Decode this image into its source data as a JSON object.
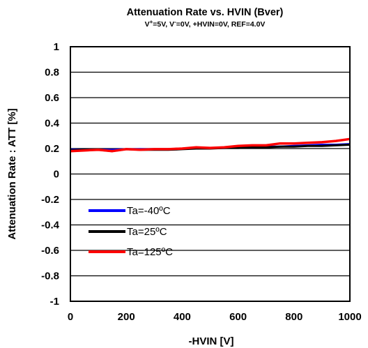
{
  "chart_data": {
    "type": "line",
    "title": "Attenuation Rate vs. HVIN (Bver)",
    "subtitle": {
      "vplus": "V",
      "vplus_sup": "+",
      "vplus_rest": "=5V, V",
      "vminus_sup": "-",
      "rest": "=0V, +HVIN=0V, REF=4.0V"
    },
    "xlabel": "-HVIN [V]",
    "ylabel": "Attenuation Rate : ATT [%]",
    "xlim": [
      0,
      1000
    ],
    "ylim": [
      -1,
      1
    ],
    "x_ticks": [
      0,
      200,
      400,
      600,
      800,
      1000
    ],
    "x_tick_labels": [
      "0",
      "200",
      "400",
      "600",
      "800",
      "1000"
    ],
    "y_ticks": [
      1,
      0.8,
      0.6,
      0.4,
      0.2,
      0,
      -0.2,
      -0.4,
      -0.6,
      -0.8,
      -1
    ],
    "y_tick_labels": [
      "1",
      "0.8",
      "0.6",
      "0.4",
      "0.2",
      "0",
      "-0.2",
      "-0.4",
      "-0.6",
      "-0.8",
      "-1"
    ],
    "grid": "horizontal",
    "legend_position": "lower-left",
    "series": [
      {
        "name": "Ta=-40ºC",
        "color": "#0000ff",
        "x": [
          0,
          50,
          100,
          150,
          200,
          250,
          300,
          350,
          400,
          450,
          500,
          550,
          600,
          650,
          700,
          750,
          800,
          850,
          900,
          950,
          1000
        ],
        "y": [
          0.19,
          0.19,
          0.19,
          0.19,
          0.195,
          0.195,
          0.195,
          0.195,
          0.2,
          0.2,
          0.205,
          0.205,
          0.21,
          0.21,
          0.215,
          0.215,
          0.22,
          0.225,
          0.23,
          0.23,
          0.235
        ]
      },
      {
        "name": "Ta=25ºC",
        "color": "#000000",
        "x": [
          0,
          50,
          100,
          150,
          200,
          250,
          300,
          350,
          400,
          450,
          500,
          550,
          600,
          650,
          700,
          750,
          800,
          850,
          900,
          950,
          1000
        ],
        "y": [
          0.185,
          0.19,
          0.19,
          0.18,
          0.195,
          0.19,
          0.19,
          0.19,
          0.195,
          0.2,
          0.2,
          0.205,
          0.205,
          0.21,
          0.21,
          0.215,
          0.215,
          0.22,
          0.22,
          0.225,
          0.23
        ]
      },
      {
        "name": "Ta=125ºC",
        "color": "#ff0000",
        "x": [
          0,
          50,
          100,
          150,
          200,
          250,
          300,
          350,
          400,
          450,
          500,
          550,
          600,
          650,
          700,
          750,
          800,
          850,
          900,
          950,
          1000
        ],
        "y": [
          0.18,
          0.185,
          0.19,
          0.18,
          0.195,
          0.19,
          0.195,
          0.195,
          0.2,
          0.21,
          0.205,
          0.21,
          0.22,
          0.225,
          0.225,
          0.24,
          0.24,
          0.245,
          0.25,
          0.26,
          0.275
        ]
      }
    ]
  }
}
